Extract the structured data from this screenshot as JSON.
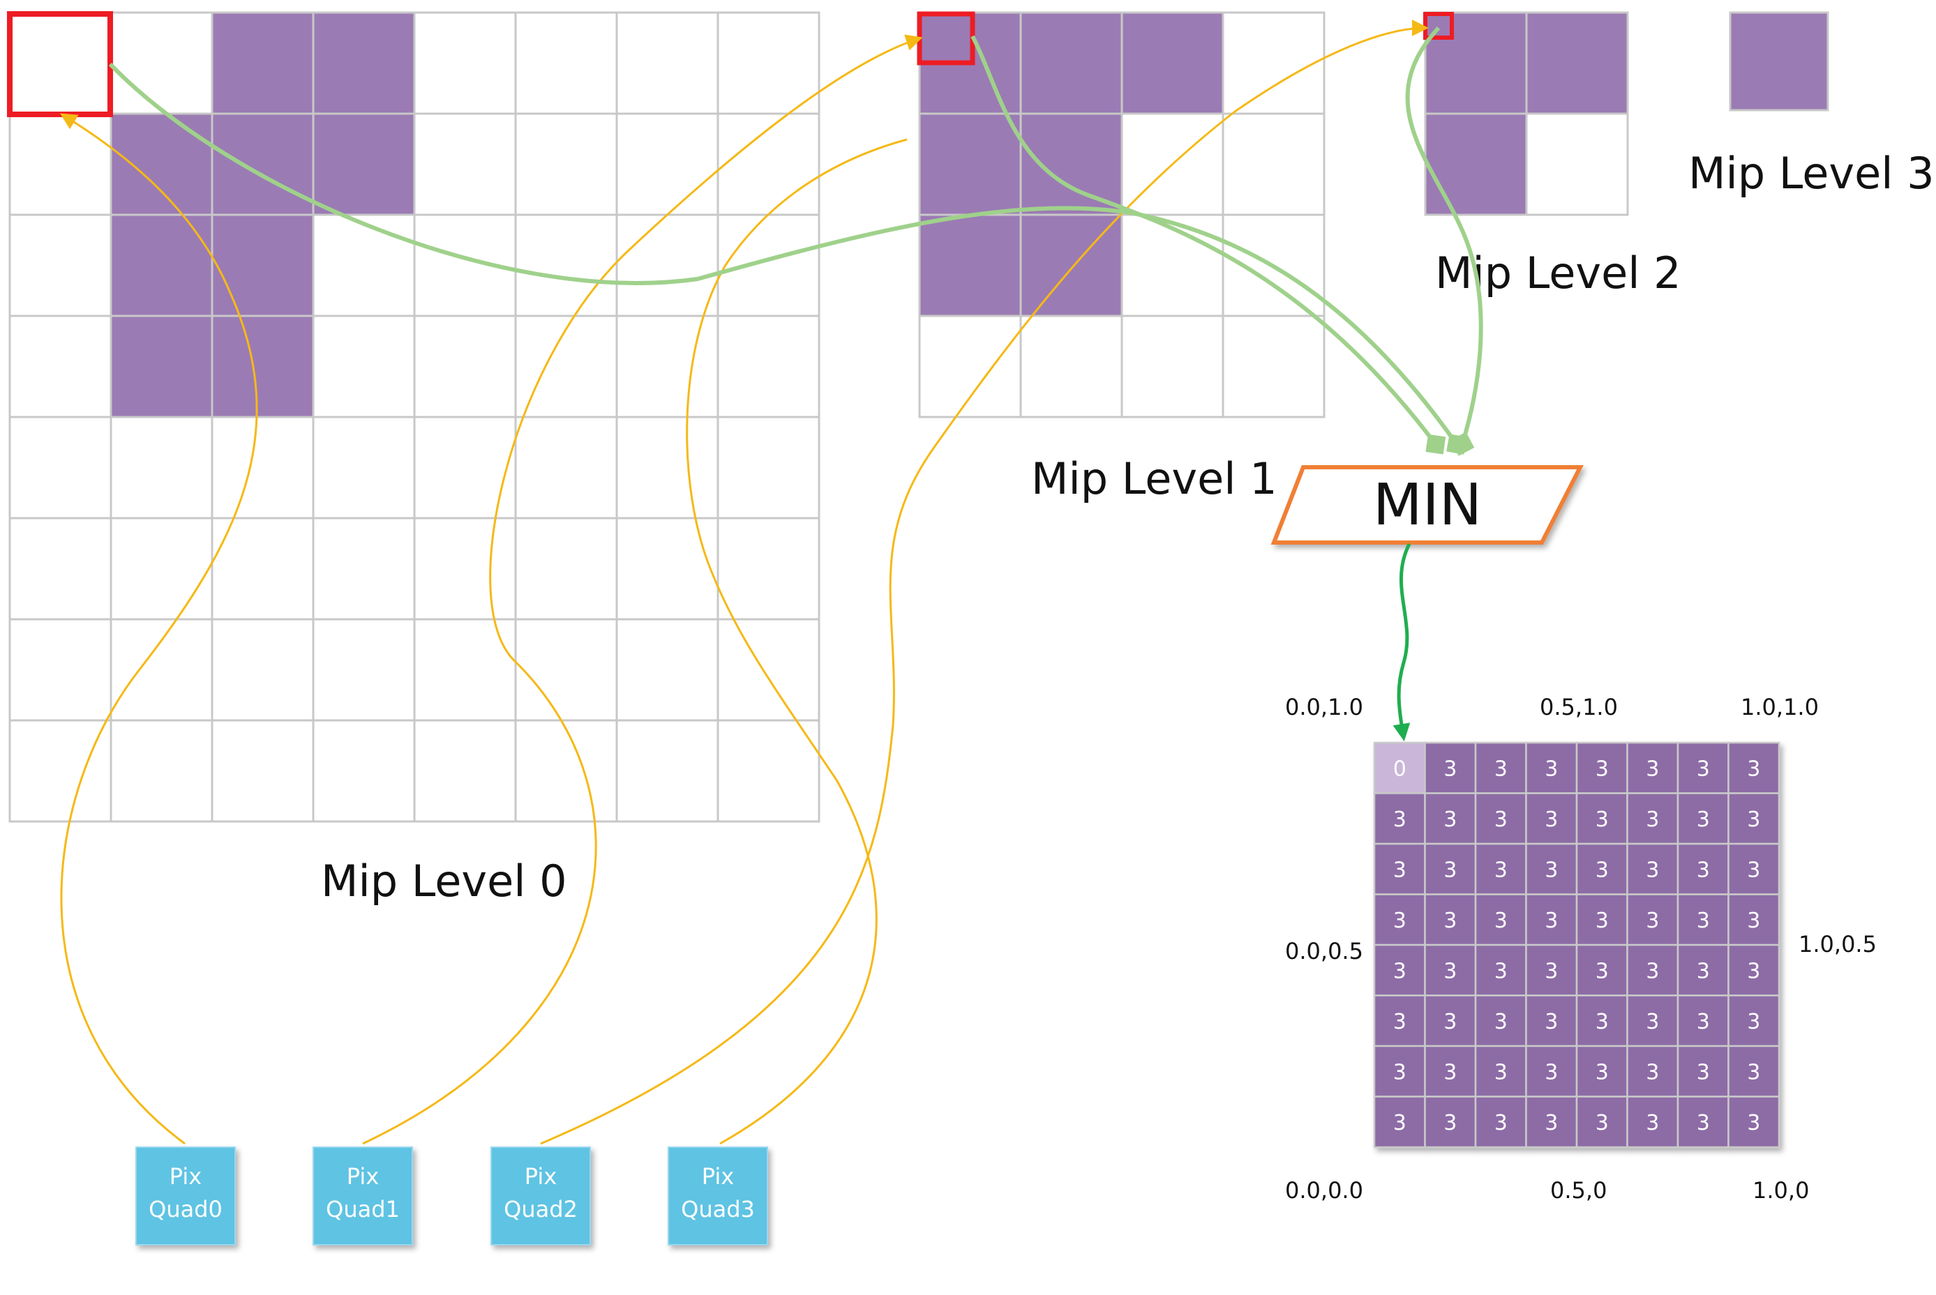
{
  "mip_levels": [
    {
      "label": "Mip Level 0",
      "size": 8,
      "filled": [
        [
          0,
          2
        ],
        [
          0,
          3
        ],
        [
          1,
          1
        ],
        [
          1,
          2
        ],
        [
          1,
          3
        ],
        [
          2,
          1
        ],
        [
          2,
          2
        ],
        [
          3,
          1
        ],
        [
          3,
          2
        ]
      ]
    },
    {
      "label": "Mip Level 1",
      "size": 4,
      "filled": [
        [
          0,
          0
        ],
        [
          0,
          1
        ],
        [
          0,
          2
        ],
        [
          1,
          0
        ],
        [
          1,
          1
        ],
        [
          2,
          0
        ],
        [
          2,
          1
        ]
      ]
    },
    {
      "label": "Mip Level 2",
      "size": 2,
      "filled": [
        [
          0,
          0
        ],
        [
          0,
          1
        ],
        [
          1,
          0
        ]
      ]
    },
    {
      "label": "Mip Level 3",
      "size": 1,
      "filled": [
        [
          0,
          0
        ]
      ]
    }
  ],
  "min_node": {
    "label": "MIN"
  },
  "pix_quads": [
    {
      "line1": "Pix",
      "line2": "Quad0"
    },
    {
      "line1": "Pix",
      "line2": "Quad1"
    },
    {
      "line1": "Pix",
      "line2": "Quad2"
    },
    {
      "line1": "Pix",
      "line2": "Quad3"
    }
  ],
  "result_grid": {
    "size": 8,
    "values": [
      [
        "0",
        "3",
        "3",
        "3",
        "3",
        "3",
        "3",
        "3"
      ],
      [
        "3",
        "3",
        "3",
        "3",
        "3",
        "3",
        "3",
        "3"
      ],
      [
        "3",
        "3",
        "3",
        "3",
        "3",
        "3",
        "3",
        "3"
      ],
      [
        "3",
        "3",
        "3",
        "3",
        "3",
        "3",
        "3",
        "3"
      ],
      [
        "3",
        "3",
        "3",
        "3",
        "3",
        "3",
        "3",
        "3"
      ],
      [
        "3",
        "3",
        "3",
        "3",
        "3",
        "3",
        "3",
        "3"
      ],
      [
        "3",
        "3",
        "3",
        "3",
        "3",
        "3",
        "3",
        "3"
      ],
      [
        "3",
        "3",
        "3",
        "3",
        "3",
        "3",
        "3",
        "3"
      ]
    ],
    "coords": {
      "top_left": "0.0,1.0",
      "top_mid": "0.5,1.0",
      "top_right": "1.0,1.0",
      "mid_left": "0.0,0.5",
      "mid_right": "1.0,0.5",
      "bottom_left": "0.0,0.0",
      "bottom_mid": "0.5,0",
      "bottom_right": "1.0,0"
    }
  },
  "colors": {
    "filled_cell": "#9b7bb4",
    "result_cell": "#8d6ca6",
    "highlight_border": "#ee1c24",
    "yellow_arrow": "#f5b916",
    "green_arrow": "#9fd18b",
    "output_arrow": "#1fae4f",
    "min_border": "#f07f34",
    "pix_quad": "#5ec3e3"
  }
}
